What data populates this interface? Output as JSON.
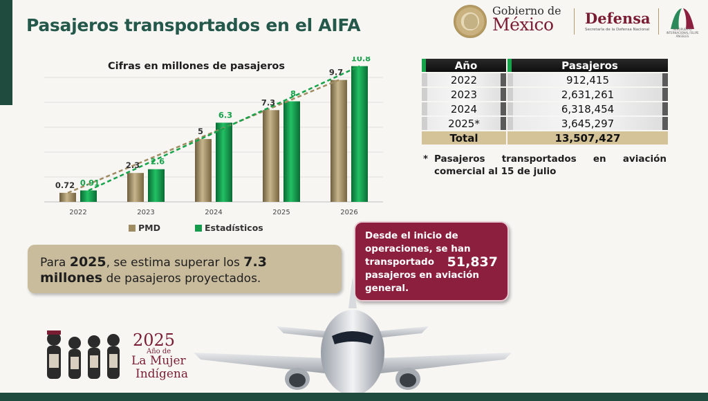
{
  "header": {
    "title": "Pasajeros transportados en el AIFA",
    "gob_line1": "Gobierno de",
    "gob_line2": "México",
    "defensa": "Defensa",
    "defensa_sub": "Secretaría de la Defensa Nacional",
    "tefi_text": "AEROPUERTO INTERNACIONAL FELIPE ÁNGELES"
  },
  "chart_data": {
    "type": "bar",
    "title": "Cifras en millones de pasajeros",
    "categories": [
      "2022",
      "2023",
      "2024",
      "2025",
      "2026"
    ],
    "series": [
      {
        "name": "PMD",
        "values": [
          0.72,
          2.3,
          5,
          7.3,
          9.7
        ],
        "color": "#a08c62"
      },
      {
        "name": "Estadísticos",
        "values": [
          0.91,
          2.6,
          6.3,
          8,
          10.8
        ],
        "color": "#169a4b"
      }
    ],
    "labels": {
      "PMD": [
        "0.72",
        "2.3",
        "5",
        "7.3",
        "9.7"
      ],
      "Estadísticos": [
        "0.91",
        "2.6",
        "6.3",
        "8",
        "10.8"
      ]
    },
    "trendlines": true,
    "ylim": [
      0,
      11
    ],
    "grid": true,
    "legend": "bottom"
  },
  "estimate": {
    "prefix": "Para ",
    "year": "2025",
    "middle": ", se estima superar los ",
    "amount": "7.3 millones",
    "suffix": " de pasajeros proyectados."
  },
  "table": {
    "headers": [
      "Año",
      "Pasajeros"
    ],
    "rows": [
      {
        "year": "2022",
        "value": "912,415"
      },
      {
        "year": "2023",
        "value": "2,631,261"
      },
      {
        "year": "2024",
        "value": "6,318,454"
      },
      {
        "year": "2025*",
        "value": "3,645,297"
      }
    ],
    "total_label": "Total",
    "total_value": "13,507,427"
  },
  "footnote": {
    "star": "*",
    "text": "Pasajeros transportados en aviación comercial al 15 de julio"
  },
  "general_aviation": {
    "line1": "Desde el inicio de",
    "line2": "operaciones, se han",
    "line3a": "transportado",
    "line3b": "51,837",
    "line4": "pasajeros en aviación",
    "line5": "general."
  },
  "logo2025": {
    "year": "2025",
    "sub": "Año de",
    "line1": "La Mujer",
    "line2": "Indígena"
  },
  "colors": {
    "brand_green": "#24584a",
    "wine": "#8c1f3e",
    "gold": "#a08c62",
    "stat_green": "#169a4b"
  }
}
